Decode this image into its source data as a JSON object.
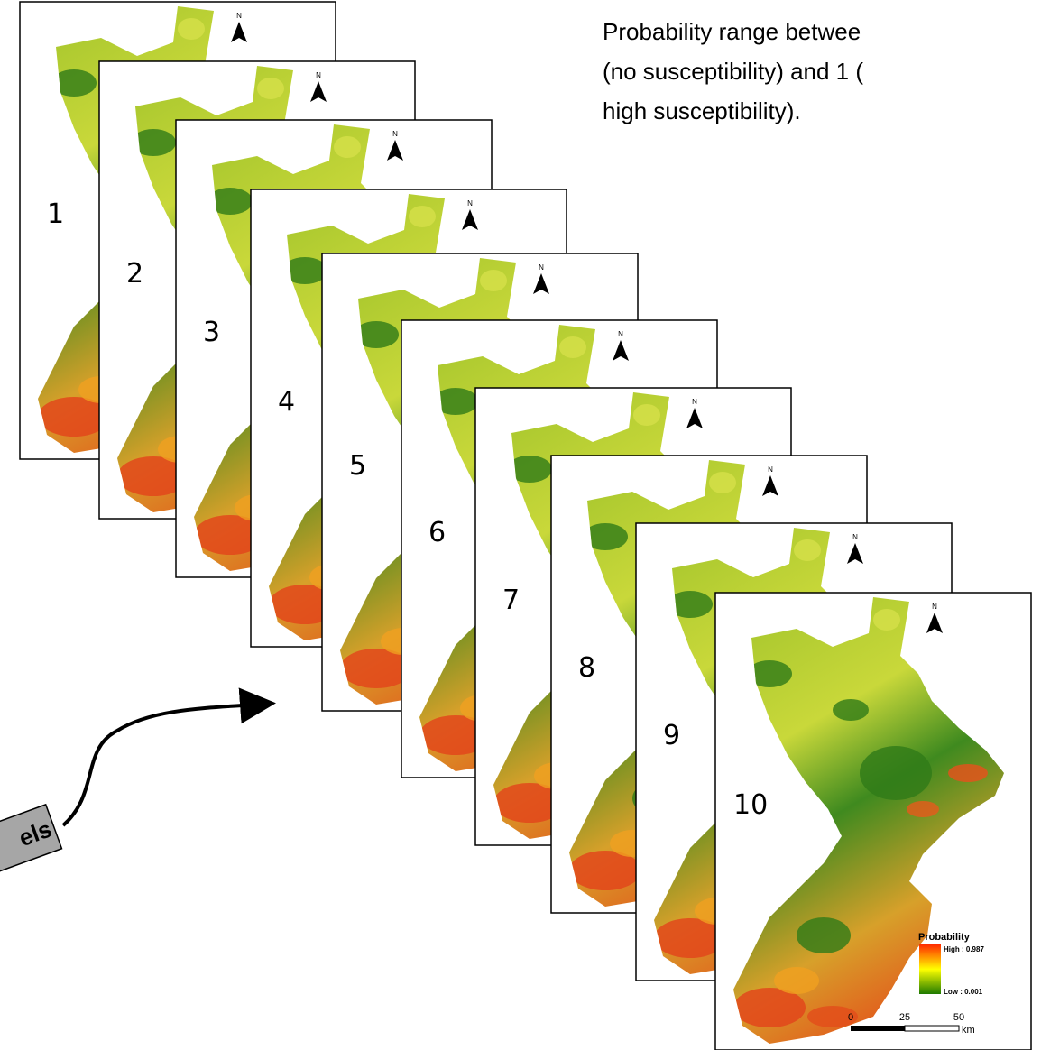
{
  "description": {
    "lines": [
      "Probability range betwee",
      "(no susceptibility) and 1 (",
      "high susceptibility)."
    ]
  },
  "panels": [
    {
      "label": "1"
    },
    {
      "label": "2"
    },
    {
      "label": "3"
    },
    {
      "label": "4"
    },
    {
      "label": "5"
    },
    {
      "label": "6"
    },
    {
      "label": "7"
    },
    {
      "label": "8"
    },
    {
      "label": "9"
    },
    {
      "label": "10"
    }
  ],
  "north": "N",
  "legend": {
    "title": "Probability",
    "high": "High : 0.987",
    "low": "Low : 0.001",
    "scale": [
      "0",
      "25",
      "50"
    ],
    "unit": "km"
  },
  "tag": "els"
}
